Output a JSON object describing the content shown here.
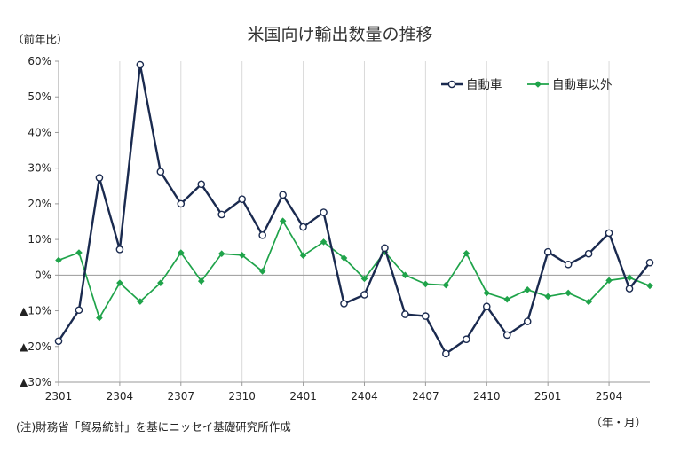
{
  "chart_data": {
    "type": "line",
    "title": "米国向け輸出数量の推移",
    "ylabel": "（前年比）",
    "xlabel": "（年・月）",
    "source": "(注)財務省「貿易統計」を基にニッセイ基礎研究所作成",
    "ylim": [
      -30,
      60
    ],
    "yticks": [
      60,
      50,
      40,
      30,
      20,
      10,
      0,
      -10,
      -20,
      -30
    ],
    "ytick_labels": [
      "60%",
      "50%",
      "40%",
      "30%",
      "20%",
      "10%",
      "0%",
      "▲10%",
      "▲20%",
      "▲30%"
    ],
    "x": [
      "2301",
      "2302",
      "2303",
      "2304",
      "2305",
      "2306",
      "2307",
      "2308",
      "2309",
      "2310",
      "2311",
      "2312",
      "2401",
      "2402",
      "2403",
      "2404",
      "2405",
      "2406",
      "2407",
      "2408",
      "2409",
      "2410",
      "2411",
      "2412",
      "2501",
      "2502",
      "2503",
      "2504",
      "2505",
      "2506"
    ],
    "xticks": [
      "2301",
      "2304",
      "2307",
      "2310",
      "2401",
      "2404",
      "2407",
      "2410",
      "2501",
      "2504"
    ],
    "grid": "vertical",
    "legend": "top-right",
    "series": [
      {
        "name": "自動車",
        "color": "#1a2a4f",
        "marker": "circle",
        "values": [
          -18.5,
          -9.8,
          27.3,
          7.2,
          59.0,
          29.0,
          20.0,
          25.5,
          17.0,
          21.3,
          11.2,
          22.5,
          13.5,
          17.6,
          -8.0,
          -5.5,
          7.6,
          -11.0,
          -11.5,
          -22.0,
          -18.0,
          -8.8,
          -16.8,
          -13.0,
          6.5,
          3.0,
          6.0,
          11.8,
          -3.8,
          3.5
        ]
      },
      {
        "name": "自動車以外",
        "color": "#1fa34a",
        "marker": "diamond",
        "values": [
          4.2,
          6.3,
          -12.0,
          -2.2,
          -7.4,
          -2.2,
          6.3,
          -1.7,
          6.0,
          5.6,
          1.1,
          15.2,
          5.5,
          9.3,
          4.8,
          -1.0,
          6.5,
          0.0,
          -2.5,
          -2.8,
          6.1,
          -5.0,
          -6.8,
          -4.1,
          -6.0,
          -5.0,
          -7.5,
          -1.5,
          -0.7,
          -3.0
        ]
      }
    ]
  }
}
